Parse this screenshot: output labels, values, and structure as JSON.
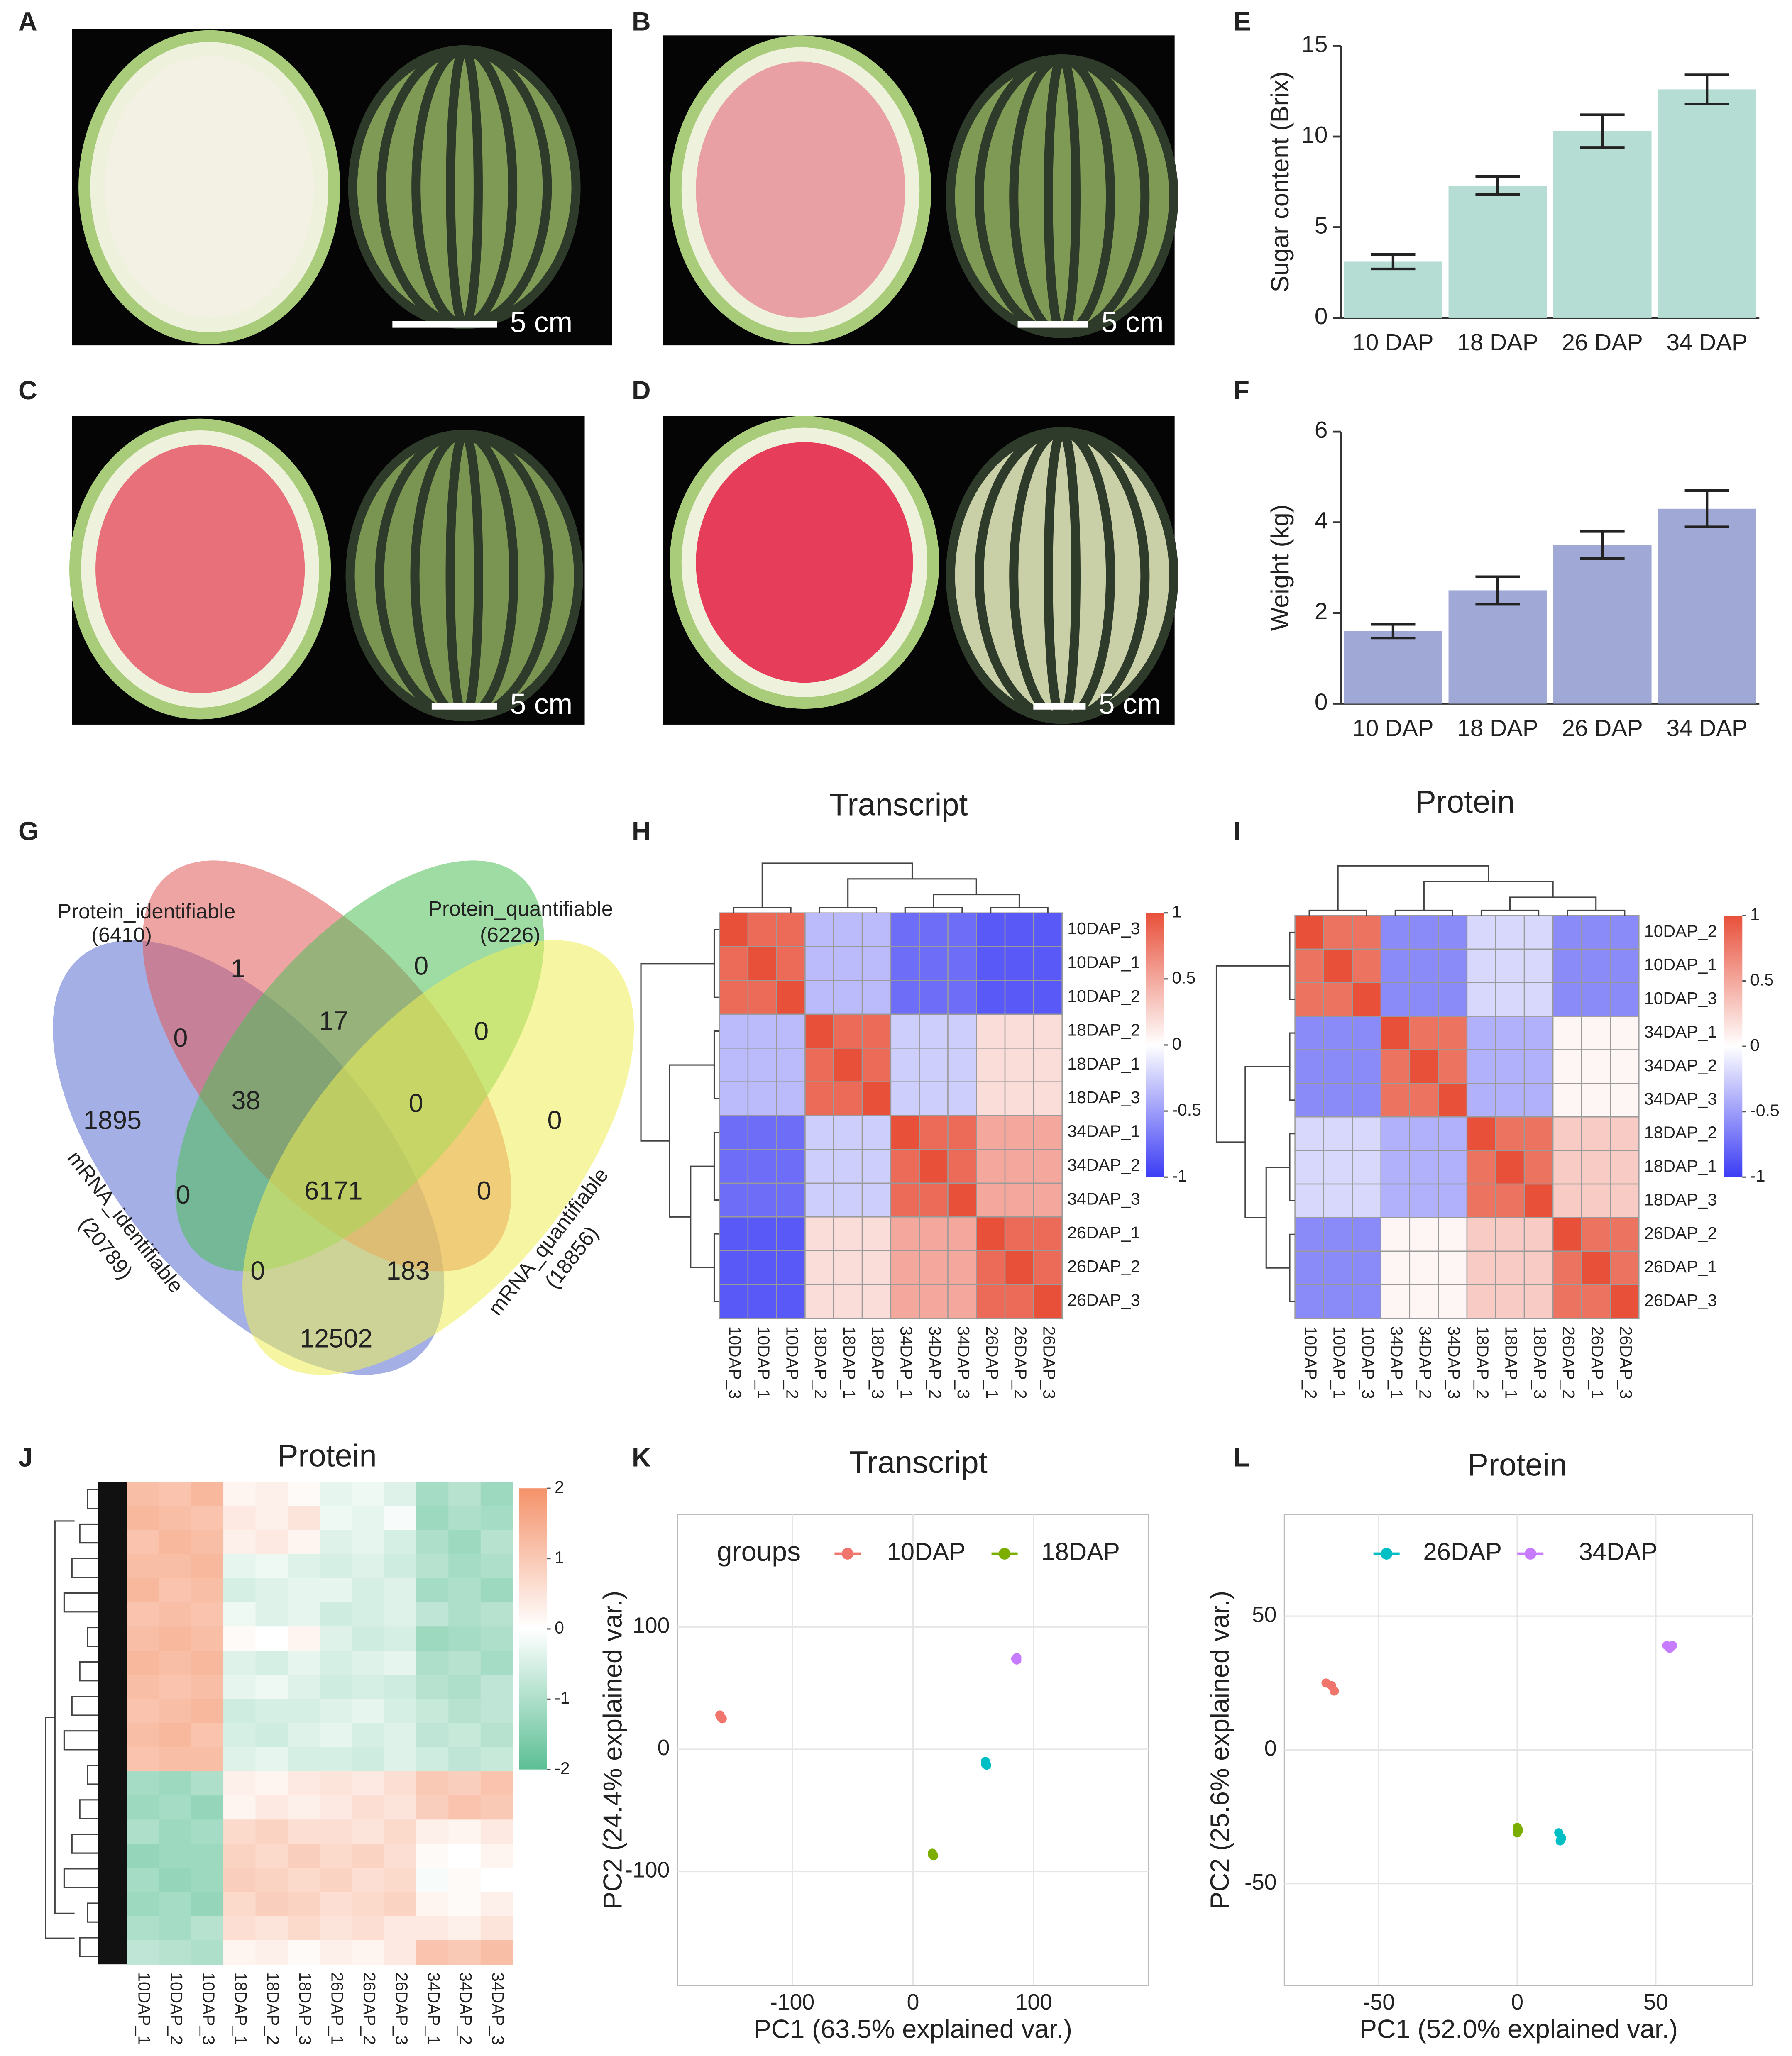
{
  "panel_labels": [
    "A",
    "B",
    "C",
    "D",
    "E",
    "F",
    "G",
    "H",
    "I",
    "J",
    "K",
    "L"
  ],
  "scale_bar": "5 cm",
  "venn": {
    "sets": [
      {
        "name": "Protein_identifiable",
        "count": "(6410)"
      },
      {
        "name": "Protein_quantifiable",
        "count": "(6226)"
      },
      {
        "name": "mRNA_identifiable",
        "count": "(20789)"
      },
      {
        "name": "mRNA_quantifiable",
        "count": "(18856)"
      }
    ],
    "regions": [
      1,
      0,
      0,
      17,
      0,
      1895,
      38,
      0,
      0,
      0,
      6171,
      0,
      0,
      183,
      12502
    ]
  },
  "chart_data": [
    {
      "type": "bar",
      "ylabel": "Sugar content (Brix)",
      "categories": [
        "10 DAP",
        "18 DAP",
        "26 DAP",
        "34 DAP"
      ],
      "values": [
        3.1,
        7.3,
        10.3,
        12.6
      ],
      "errors": [
        0.4,
        0.5,
        0.9,
        0.8
      ],
      "color": "#b5ddd4",
      "ylim": [
        0,
        15
      ],
      "yticks": [
        0,
        5,
        10,
        15
      ]
    },
    {
      "type": "bar",
      "ylabel": "Weight (kg)",
      "categories": [
        "10 DAP",
        "18 DAP",
        "26 DAP",
        "34 DAP"
      ],
      "values": [
        1.6,
        2.5,
        3.5,
        4.3
      ],
      "errors": [
        0.15,
        0.3,
        0.3,
        0.4
      ],
      "color": "#a0a8d6",
      "ylim": [
        0,
        6
      ],
      "yticks": [
        0,
        2,
        4,
        6
      ]
    },
    {
      "type": "heatmap",
      "title": "Transcript",
      "cell_borders": true,
      "rows": [
        "10DAP_3",
        "10DAP_1",
        "10DAP_2",
        "18DAP_2",
        "18DAP_1",
        "18DAP_3",
        "34DAP_1",
        "34DAP_2",
        "34DAP_3",
        "26DAP_1",
        "26DAP_2",
        "26DAP_3"
      ],
      "columns": [
        "10DAP_3",
        "10DAP_1",
        "10DAP_2",
        "18DAP_2",
        "18DAP_1",
        "18DAP_3",
        "34DAP_1",
        "34DAP_2",
        "34DAP_3",
        "26DAP_1",
        "26DAP_2",
        "26DAP_3"
      ],
      "values": [
        [
          1,
          0.85,
          0.85,
          -0.35,
          -0.35,
          -0.35,
          -0.75,
          -0.75,
          -0.75,
          -0.85,
          -0.85,
          -0.85
        ],
        [
          0.85,
          1,
          0.85,
          -0.35,
          -0.35,
          -0.35,
          -0.75,
          -0.75,
          -0.75,
          -0.85,
          -0.85,
          -0.85
        ],
        [
          0.85,
          0.85,
          1,
          -0.35,
          -0.35,
          -0.35,
          -0.75,
          -0.75,
          -0.75,
          -0.85,
          -0.85,
          -0.85
        ],
        [
          -0.35,
          -0.35,
          -0.35,
          1,
          0.85,
          0.85,
          -0.25,
          -0.25,
          -0.25,
          0.2,
          0.2,
          0.2
        ],
        [
          -0.35,
          -0.35,
          -0.35,
          0.85,
          1,
          0.85,
          -0.25,
          -0.25,
          -0.25,
          0.2,
          0.2,
          0.2
        ],
        [
          -0.35,
          -0.35,
          -0.35,
          0.85,
          0.85,
          1,
          -0.25,
          -0.25,
          -0.25,
          0.2,
          0.2,
          0.2
        ],
        [
          -0.75,
          -0.75,
          -0.75,
          -0.25,
          -0.25,
          -0.25,
          1,
          0.85,
          0.85,
          0.5,
          0.5,
          0.5
        ],
        [
          -0.75,
          -0.75,
          -0.75,
          -0.25,
          -0.25,
          -0.25,
          0.85,
          1,
          0.85,
          0.5,
          0.5,
          0.5
        ],
        [
          -0.75,
          -0.75,
          -0.75,
          -0.25,
          -0.25,
          -0.25,
          0.85,
          0.85,
          1,
          0.5,
          0.5,
          0.5
        ],
        [
          -0.85,
          -0.85,
          -0.85,
          0.2,
          0.2,
          0.2,
          0.5,
          0.5,
          0.5,
          1,
          0.85,
          0.85
        ],
        [
          -0.85,
          -0.85,
          -0.85,
          0.2,
          0.2,
          0.2,
          0.5,
          0.5,
          0.5,
          0.85,
          1,
          0.85
        ],
        [
          -0.85,
          -0.85,
          -0.85,
          0.2,
          0.2,
          0.2,
          0.5,
          0.5,
          0.5,
          0.85,
          0.85,
          1
        ]
      ],
      "colors": [
        "#3c3cf5",
        "#ffffff",
        "#e8503a"
      ],
      "zlim": [
        -1,
        1
      ],
      "zticks": [
        1,
        0.5,
        0,
        -0.5,
        -1
      ]
    },
    {
      "type": "heatmap",
      "title": "Protein",
      "cell_borders": true,
      "rows": [
        "10DAP_2",
        "10DAP_1",
        "10DAP_3",
        "34DAP_1",
        "34DAP_2",
        "34DAP_3",
        "18DAP_2",
        "18DAP_1",
        "18DAP_3",
        "26DAP_2",
        "26DAP_1",
        "26DAP_3"
      ],
      "columns": [
        "10DAP_2",
        "10DAP_1",
        "10DAP_3",
        "34DAP_1",
        "34DAP_2",
        "34DAP_3",
        "18DAP_2",
        "18DAP_1",
        "18DAP_3",
        "26DAP_2",
        "26DAP_1",
        "26DAP_3"
      ],
      "values": [
        [
          1,
          0.8,
          0.8,
          -0.6,
          -0.6,
          -0.6,
          -0.2,
          -0.2,
          -0.2,
          -0.6,
          -0.6,
          -0.6
        ],
        [
          0.8,
          1,
          0.8,
          -0.6,
          -0.6,
          -0.6,
          -0.2,
          -0.2,
          -0.2,
          -0.6,
          -0.6,
          -0.6
        ],
        [
          0.8,
          0.8,
          1,
          -0.6,
          -0.6,
          -0.6,
          -0.2,
          -0.2,
          -0.2,
          -0.6,
          -0.6,
          -0.6
        ],
        [
          -0.6,
          -0.6,
          -0.6,
          1,
          0.8,
          0.8,
          -0.4,
          -0.4,
          -0.4,
          0.05,
          0.05,
          0.05
        ],
        [
          -0.6,
          -0.6,
          -0.6,
          0.8,
          1,
          0.8,
          -0.4,
          -0.4,
          -0.4,
          0.05,
          0.05,
          0.05
        ],
        [
          -0.6,
          -0.6,
          -0.6,
          0.8,
          0.8,
          1,
          -0.4,
          -0.4,
          -0.4,
          0.05,
          0.05,
          0.05
        ],
        [
          -0.2,
          -0.2,
          -0.2,
          -0.4,
          -0.4,
          -0.4,
          1,
          0.8,
          0.8,
          0.3,
          0.3,
          0.3
        ],
        [
          -0.2,
          -0.2,
          -0.2,
          -0.4,
          -0.4,
          -0.4,
          0.8,
          1,
          0.8,
          0.3,
          0.3,
          0.3
        ],
        [
          -0.2,
          -0.2,
          -0.2,
          -0.4,
          -0.4,
          -0.4,
          0.8,
          0.8,
          1,
          0.3,
          0.3,
          0.3
        ],
        [
          -0.6,
          -0.6,
          -0.6,
          0.05,
          0.05,
          0.05,
          0.3,
          0.3,
          0.3,
          1,
          0.8,
          0.8
        ],
        [
          -0.6,
          -0.6,
          -0.6,
          0.05,
          0.05,
          0.05,
          0.3,
          0.3,
          0.3,
          0.8,
          1,
          0.8
        ],
        [
          -0.6,
          -0.6,
          -0.6,
          0.05,
          0.05,
          0.05,
          0.3,
          0.3,
          0.3,
          0.8,
          0.8,
          1
        ]
      ],
      "colors": [
        "#3c3cf5",
        "#ffffff",
        "#e8503a"
      ],
      "zlim": [
        -1,
        1
      ],
      "zticks": [
        1,
        0.5,
        0,
        -0.5,
        -1
      ]
    },
    {
      "type": "heatmap",
      "title": "Protein",
      "cell_borders": false,
      "columns": [
        "10DAP_1",
        "10DAP_2",
        "10DAP_3",
        "18DAP_1",
        "18DAP_2",
        "18DAP_3",
        "26DAP_1",
        "26DAP_2",
        "26DAP_3",
        "34DAP_1",
        "34DAP_2",
        "34DAP_3"
      ],
      "values": [
        [
          1.2,
          1.1,
          1.3,
          0.2,
          0.3,
          0.1,
          -0.3,
          -0.2,
          -0.4,
          -1.1,
          -0.9,
          -1.2
        ],
        [
          1.3,
          1.2,
          1.1,
          0.4,
          0.3,
          0.5,
          -0.2,
          -0.3,
          -0.1,
          -1.2,
          -1.0,
          -1.1
        ],
        [
          1.1,
          1.3,
          1.2,
          0.3,
          0.4,
          0.2,
          -0.4,
          -0.3,
          -0.5,
          -1.0,
          -1.2,
          -0.9
        ],
        [
          1.2,
          1.2,
          1.3,
          -0.3,
          -0.2,
          -0.4,
          -0.5,
          -0.4,
          -0.6,
          -0.9,
          -1.1,
          -1.0
        ],
        [
          1.3,
          1.1,
          1.2,
          -0.5,
          -0.4,
          -0.3,
          -0.3,
          -0.5,
          -0.4,
          -1.1,
          -1.0,
          -1.2
        ],
        [
          1.1,
          1.2,
          1.1,
          -0.2,
          -0.4,
          -0.3,
          -0.6,
          -0.5,
          -0.4,
          -0.8,
          -1.0,
          -0.9
        ],
        [
          1.2,
          1.3,
          1.2,
          0.1,
          0.0,
          0.2,
          -0.4,
          -0.6,
          -0.5,
          -1.2,
          -1.1,
          -1.0
        ],
        [
          1.3,
          1.2,
          1.3,
          -0.4,
          -0.5,
          -0.3,
          -0.5,
          -0.4,
          -0.3,
          -1.0,
          -0.9,
          -1.1
        ],
        [
          1.2,
          1.1,
          1.2,
          -0.3,
          -0.2,
          -0.4,
          -0.6,
          -0.5,
          -0.6,
          -0.9,
          -1.0,
          -0.8
        ],
        [
          1.1,
          1.2,
          1.3,
          -0.6,
          -0.5,
          -0.5,
          -0.4,
          -0.3,
          -0.5,
          -0.7,
          -0.9,
          -0.8
        ],
        [
          1.2,
          1.3,
          1.1,
          -0.5,
          -0.6,
          -0.4,
          -0.3,
          -0.5,
          -0.4,
          -0.8,
          -0.7,
          -0.9
        ],
        [
          1.1,
          1.2,
          1.2,
          -0.4,
          -0.3,
          -0.5,
          -0.5,
          -0.6,
          -0.4,
          -0.6,
          -0.8,
          -0.7
        ],
        [
          -1.1,
          -1.2,
          -1.0,
          0.3,
          0.2,
          0.4,
          0.5,
          0.4,
          0.6,
          1.0,
          0.9,
          1.1
        ],
        [
          -1.2,
          -1.1,
          -1.3,
          0.2,
          0.4,
          0.3,
          0.4,
          0.6,
          0.5,
          0.9,
          1.1,
          1.0
        ],
        [
          -1.0,
          -1.2,
          -1.1,
          0.7,
          0.8,
          0.6,
          0.6,
          0.5,
          0.7,
          0.3,
          0.2,
          0.4
        ],
        [
          -1.3,
          -1.2,
          -1.2,
          0.8,
          0.7,
          0.9,
          0.7,
          0.8,
          0.6,
          0.1,
          0.0,
          0.2
        ],
        [
          -1.1,
          -1.3,
          -1.2,
          0.9,
          0.8,
          0.7,
          0.8,
          0.6,
          0.7,
          -0.1,
          0.1,
          0.0
        ],
        [
          -1.2,
          -1.1,
          -1.3,
          0.7,
          0.9,
          0.8,
          0.6,
          0.7,
          0.8,
          0.2,
          0.1,
          0.3
        ],
        [
          -1.0,
          -1.1,
          -0.9,
          0.6,
          0.5,
          0.7,
          0.5,
          0.6,
          0.4,
          0.4,
          0.3,
          0.5
        ],
        [
          -0.8,
          -0.9,
          -1.0,
          0.2,
          0.3,
          0.1,
          0.3,
          0.2,
          0.4,
          1.1,
          1.0,
          1.2
        ]
      ],
      "colors": [
        "#5cbf95",
        "#ffffff",
        "#f4926a"
      ],
      "zlim": [
        -2,
        2
      ],
      "zticks": [
        2,
        1,
        0,
        -1,
        -2
      ]
    },
    {
      "type": "scatter",
      "title": "Transcript",
      "xlabel": "PC1 (63.5% explained var.)",
      "ylabel": "PC2 (24.4% explained var.)",
      "legend_title": "groups",
      "series": [
        {
          "name": "10DAP",
          "color": "#f0766d",
          "x": [
            -160,
            -158,
            -159
          ],
          "values": [
            28,
            25,
            26
          ]
        },
        {
          "name": "18DAP",
          "color": "#7cae00",
          "x": [
            16,
            17,
            16
          ],
          "values": [
            -85,
            -87,
            -86
          ]
        },
        {
          "color": "#00bfc4",
          "x": [
            60,
            61,
            60
          ],
          "values": [
            -10,
            -13,
            -12
          ]
        },
        {
          "color": "#c77cff",
          "x": [
            85,
            86,
            86
          ],
          "values": [
            74,
            73,
            75
          ]
        }
      ],
      "xlim": [
        -195,
        195
      ],
      "ylim": [
        -193,
        192
      ],
      "xticks": [
        -100,
        0,
        100
      ],
      "yticks": [
        -100,
        0,
        100
      ],
      "grid": true
    },
    {
      "type": "scatter",
      "title": "Protein",
      "xlabel": "PC1 (52.0% explained var.)",
      "ylabel": "PC2 (25.6% explained var.)",
      "series": [
        {
          "color": "#f0766d",
          "x": [
            -69,
            -67,
            -66
          ],
          "values": [
            25,
            24,
            22
          ]
        },
        {
          "color": "#7cae00",
          "x": [
            0,
            0.5,
            0
          ],
          "values": [
            -29,
            -30,
            -31
          ]
        },
        {
          "name": "26DAP",
          "color": "#00bfc4",
          "x": [
            15,
            16,
            15.5
          ],
          "values": [
            -31,
            -33,
            -34
          ]
        },
        {
          "name": "34DAP",
          "color": "#c77cff",
          "x": [
            54,
            55,
            56
          ],
          "values": [
            39,
            38,
            39
          ]
        }
      ],
      "xlim": [
        -84,
        85
      ],
      "ylim": [
        -88,
        88
      ],
      "xticks": [
        -50,
        0,
        50
      ],
      "yticks": [
        -50,
        0,
        50
      ],
      "grid": true
    }
  ]
}
